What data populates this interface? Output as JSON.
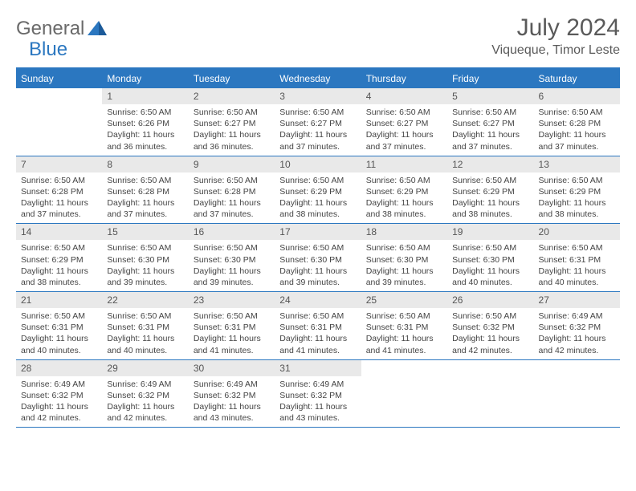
{
  "brand": {
    "general": "General",
    "blue": "Blue"
  },
  "title": "July 2024",
  "location": "Viqueque, Timor Leste",
  "weekdays": [
    "Sunday",
    "Monday",
    "Tuesday",
    "Wednesday",
    "Thursday",
    "Friday",
    "Saturday"
  ],
  "colors": {
    "accent": "#2b77c0",
    "header_text": "#ffffff",
    "daynum_bg": "#e9e9e9",
    "text": "#444444",
    "title_text": "#5a5a5a"
  },
  "typography": {
    "title_fontsize": 30,
    "location_fontsize": 16,
    "weekday_fontsize": 12,
    "daynum_fontsize": 12,
    "body_fontsize": 10.5
  },
  "first_day_index": 1,
  "days": [
    {
      "n": 1,
      "sunrise": "6:50 AM",
      "sunset": "6:26 PM",
      "daylight": "11 hours and 36 minutes."
    },
    {
      "n": 2,
      "sunrise": "6:50 AM",
      "sunset": "6:27 PM",
      "daylight": "11 hours and 36 minutes."
    },
    {
      "n": 3,
      "sunrise": "6:50 AM",
      "sunset": "6:27 PM",
      "daylight": "11 hours and 37 minutes."
    },
    {
      "n": 4,
      "sunrise": "6:50 AM",
      "sunset": "6:27 PM",
      "daylight": "11 hours and 37 minutes."
    },
    {
      "n": 5,
      "sunrise": "6:50 AM",
      "sunset": "6:27 PM",
      "daylight": "11 hours and 37 minutes."
    },
    {
      "n": 6,
      "sunrise": "6:50 AM",
      "sunset": "6:28 PM",
      "daylight": "11 hours and 37 minutes."
    },
    {
      "n": 7,
      "sunrise": "6:50 AM",
      "sunset": "6:28 PM",
      "daylight": "11 hours and 37 minutes."
    },
    {
      "n": 8,
      "sunrise": "6:50 AM",
      "sunset": "6:28 PM",
      "daylight": "11 hours and 37 minutes."
    },
    {
      "n": 9,
      "sunrise": "6:50 AM",
      "sunset": "6:28 PM",
      "daylight": "11 hours and 37 minutes."
    },
    {
      "n": 10,
      "sunrise": "6:50 AM",
      "sunset": "6:29 PM",
      "daylight": "11 hours and 38 minutes."
    },
    {
      "n": 11,
      "sunrise": "6:50 AM",
      "sunset": "6:29 PM",
      "daylight": "11 hours and 38 minutes."
    },
    {
      "n": 12,
      "sunrise": "6:50 AM",
      "sunset": "6:29 PM",
      "daylight": "11 hours and 38 minutes."
    },
    {
      "n": 13,
      "sunrise": "6:50 AM",
      "sunset": "6:29 PM",
      "daylight": "11 hours and 38 minutes."
    },
    {
      "n": 14,
      "sunrise": "6:50 AM",
      "sunset": "6:29 PM",
      "daylight": "11 hours and 38 minutes."
    },
    {
      "n": 15,
      "sunrise": "6:50 AM",
      "sunset": "6:30 PM",
      "daylight": "11 hours and 39 minutes."
    },
    {
      "n": 16,
      "sunrise": "6:50 AM",
      "sunset": "6:30 PM",
      "daylight": "11 hours and 39 minutes."
    },
    {
      "n": 17,
      "sunrise": "6:50 AM",
      "sunset": "6:30 PM",
      "daylight": "11 hours and 39 minutes."
    },
    {
      "n": 18,
      "sunrise": "6:50 AM",
      "sunset": "6:30 PM",
      "daylight": "11 hours and 39 minutes."
    },
    {
      "n": 19,
      "sunrise": "6:50 AM",
      "sunset": "6:30 PM",
      "daylight": "11 hours and 40 minutes."
    },
    {
      "n": 20,
      "sunrise": "6:50 AM",
      "sunset": "6:31 PM",
      "daylight": "11 hours and 40 minutes."
    },
    {
      "n": 21,
      "sunrise": "6:50 AM",
      "sunset": "6:31 PM",
      "daylight": "11 hours and 40 minutes."
    },
    {
      "n": 22,
      "sunrise": "6:50 AM",
      "sunset": "6:31 PM",
      "daylight": "11 hours and 40 minutes."
    },
    {
      "n": 23,
      "sunrise": "6:50 AM",
      "sunset": "6:31 PM",
      "daylight": "11 hours and 41 minutes."
    },
    {
      "n": 24,
      "sunrise": "6:50 AM",
      "sunset": "6:31 PM",
      "daylight": "11 hours and 41 minutes."
    },
    {
      "n": 25,
      "sunrise": "6:50 AM",
      "sunset": "6:31 PM",
      "daylight": "11 hours and 41 minutes."
    },
    {
      "n": 26,
      "sunrise": "6:50 AM",
      "sunset": "6:32 PM",
      "daylight": "11 hours and 42 minutes."
    },
    {
      "n": 27,
      "sunrise": "6:49 AM",
      "sunset": "6:32 PM",
      "daylight": "11 hours and 42 minutes."
    },
    {
      "n": 28,
      "sunrise": "6:49 AM",
      "sunset": "6:32 PM",
      "daylight": "11 hours and 42 minutes."
    },
    {
      "n": 29,
      "sunrise": "6:49 AM",
      "sunset": "6:32 PM",
      "daylight": "11 hours and 42 minutes."
    },
    {
      "n": 30,
      "sunrise": "6:49 AM",
      "sunset": "6:32 PM",
      "daylight": "11 hours and 43 minutes."
    },
    {
      "n": 31,
      "sunrise": "6:49 AM",
      "sunset": "6:32 PM",
      "daylight": "11 hours and 43 minutes."
    }
  ],
  "labels": {
    "sunrise": "Sunrise:",
    "sunset": "Sunset:",
    "daylight": "Daylight:"
  }
}
